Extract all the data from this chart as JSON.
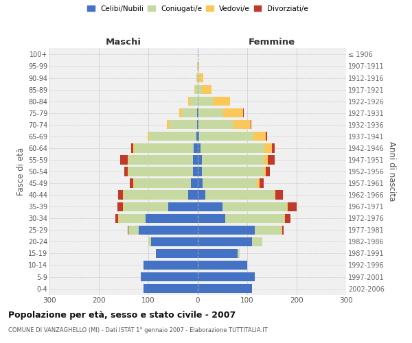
{
  "age_groups": [
    "0-4",
    "5-9",
    "10-14",
    "15-19",
    "20-24",
    "25-29",
    "30-34",
    "35-39",
    "40-44",
    "45-49",
    "50-54",
    "55-59",
    "60-64",
    "65-69",
    "70-74",
    "75-79",
    "80-84",
    "85-89",
    "90-94",
    "95-99",
    "100+"
  ],
  "birth_years": [
    "2002-2006",
    "1997-2001",
    "1992-1996",
    "1987-1991",
    "1982-1986",
    "1977-1981",
    "1972-1976",
    "1967-1971",
    "1962-1966",
    "1957-1961",
    "1952-1956",
    "1947-1951",
    "1942-1946",
    "1937-1941",
    "1932-1936",
    "1927-1931",
    "1922-1926",
    "1917-1921",
    "1912-1916",
    "1907-1911",
    "≤ 1906"
  ],
  "maschi": {
    "celibi": [
      110,
      115,
      110,
      85,
      95,
      120,
      105,
      60,
      20,
      14,
      10,
      10,
      8,
      3,
      2,
      2,
      0,
      0,
      0,
      0,
      0
    ],
    "coniugati": [
      0,
      0,
      0,
      0,
      5,
      20,
      55,
      90,
      130,
      115,
      130,
      130,
      120,
      95,
      55,
      30,
      15,
      5,
      2,
      1,
      0
    ],
    "vedovi": [
      0,
      0,
      0,
      0,
      0,
      0,
      1,
      1,
      1,
      1,
      1,
      2,
      2,
      3,
      5,
      5,
      5,
      2,
      1,
      0,
      0
    ],
    "divorziati": [
      0,
      0,
      0,
      0,
      0,
      2,
      5,
      12,
      10,
      8,
      8,
      15,
      5,
      1,
      1,
      0,
      0,
      0,
      0,
      0,
      0
    ]
  },
  "femmine": {
    "nubili": [
      110,
      115,
      100,
      80,
      110,
      115,
      55,
      50,
      15,
      10,
      8,
      8,
      5,
      3,
      2,
      2,
      0,
      0,
      0,
      0,
      0
    ],
    "coniugate": [
      0,
      0,
      0,
      5,
      20,
      55,
      120,
      130,
      140,
      110,
      125,
      125,
      130,
      110,
      70,
      50,
      30,
      8,
      3,
      1,
      0
    ],
    "vedove": [
      0,
      0,
      0,
      0,
      0,
      1,
      2,
      2,
      2,
      5,
      5,
      8,
      15,
      25,
      35,
      40,
      35,
      20,
      8,
      2,
      0
    ],
    "divorziate": [
      0,
      0,
      0,
      0,
      0,
      3,
      10,
      18,
      15,
      8,
      8,
      15,
      5,
      2,
      1,
      1,
      0,
      0,
      0,
      0,
      0
    ]
  },
  "colors": {
    "celibi_nubili": "#4472C4",
    "coniugati_e": "#C5D9A0",
    "vedovi_e": "#FAC858",
    "divorziati_e": "#C0392B"
  },
  "title": "Popolazione per età, sesso e stato civile - 2007",
  "subtitle": "COMUNE DI VANZAGHELLO (MI) - Dati ISTAT 1° gennaio 2007 - Elaborazione TUTTITALIA.IT",
  "ylabel_left": "Fasce di età",
  "ylabel_right": "Anni di nascita",
  "xlim": 300,
  "legend_labels": [
    "Celibi/Nubili",
    "Coniugati/e",
    "Vedovi/e",
    "Divorziati/e"
  ],
  "maschi_label": "Maschi",
  "femmine_label": "Femmine",
  "bg_color": "#ffffff",
  "plot_bg_color": "#f0f0f0",
  "grid_color": "#cccccc"
}
